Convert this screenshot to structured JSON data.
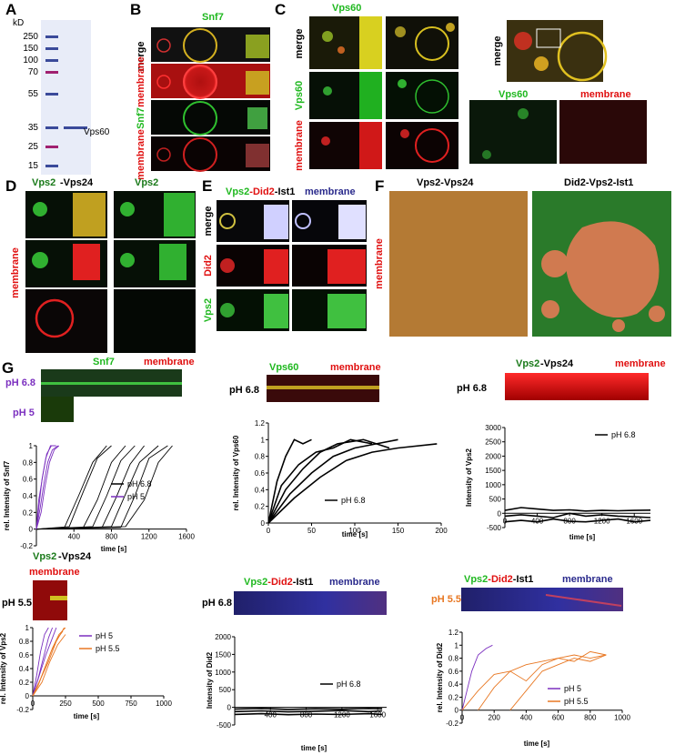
{
  "panels": {
    "A": "A",
    "B": "B",
    "C": "C",
    "D": "D",
    "E": "E",
    "F": "F",
    "G": "G"
  },
  "gel": {
    "unit": "kD",
    "ladder": [
      "250",
      "150",
      "100",
      "70",
      "55",
      "35",
      "25",
      "15"
    ],
    "protein_label": "Vps60"
  },
  "panel_b": {
    "title": "Snf7",
    "row_merge": "merge",
    "row_snf7": "Snf7",
    "row_membrane": "membrane"
  },
  "panel_c": {
    "title": "Vps60",
    "row_merge": "merge",
    "row_vps60": "Vps60",
    "row_membrane": "membrane",
    "zoom_merge": "merge",
    "zoom_vps60": "Vps60",
    "zoom_membrane": "membrane"
  },
  "panel_d": {
    "title_a": "Vps2",
    "title_b": "-Vps24",
    "title_c": "Vps2",
    "side": "membrane"
  },
  "panel_e": {
    "t1": "Vps2",
    "t2": "-Did2",
    "t3": "-Ist1",
    "t4": "membrane",
    "row_merge": "merge",
    "row_did2": "Did2",
    "row_vps2": "Vps2"
  },
  "panel_f": {
    "title_left": "Vps2-Vps24",
    "title_right": "Did2-Vps2-Ist1",
    "side": "membrane"
  },
  "colors": {
    "green": "#1fb81f",
    "red": "#e01010",
    "blue": "#2a2a8c",
    "purple": "#7b2fbf",
    "orange": "#e87722",
    "darkgreen": "#1a7a1a"
  },
  "charts": {
    "g1": {
      "label_snf7": "Snf7",
      "label_membrane": "membrane",
      "ph_a": "pH 6.8",
      "ph_b": "pH 5",
      "ylabel": "rel. Intensity of Snf7",
      "xlabel": "time [s]",
      "legend": [
        "pH 6.8",
        "pH 5"
      ],
      "yticks": [
        "1",
        "0.8",
        "0.6",
        "0.4",
        "0.2",
        "0",
        "-0.2"
      ],
      "xticks": [
        "400",
        "800",
        "1200",
        "1600"
      ]
    },
    "g2": {
      "label_vps60": "Vps60",
      "label_membrane": "membrane",
      "ph": "pH 6.8",
      "ylabel": "rel. Intensity  of  Vps60",
      "xlabel": "time [s]",
      "legend": [
        "pH 6.8"
      ],
      "yticks": [
        "1.2",
        "1",
        "0.8",
        "0.6",
        "0.4",
        "0.2",
        "0"
      ],
      "xticks": [
        "0",
        "50",
        "100",
        "150",
        "200"
      ]
    },
    "g3": {
      "label_vps2": "Vps2",
      "label_vps24": "-Vps24",
      "label_membrane": "membrane",
      "ph": "pH 6.8",
      "ylabel": "Intensity of Vps2",
      "xlabel": "time [s]",
      "legend": [
        "pH 6.8"
      ],
      "yticks": [
        "3000",
        "2500",
        "2000",
        "1500",
        "1000",
        "500",
        "0",
        "-500"
      ],
      "xticks": [
        "0",
        "400",
        "800",
        "1200",
        "1600"
      ]
    },
    "g4": {
      "label_vps2": "Vps2",
      "label_vps24": "-Vps24",
      "label_membrane": "membrane",
      "ph": "pH 5.5",
      "ylabel": "rel. Intensity of Vps2",
      "xlabel": "time [s]",
      "legend": [
        "pH 5",
        "pH 5.5"
      ],
      "yticks": [
        "1",
        "0.8",
        "0.6",
        "0.4",
        "0.2",
        "0",
        "-0.2"
      ],
      "xticks": [
        "0",
        "250",
        "500",
        "750",
        "1000"
      ]
    },
    "g5": {
      "t_vps2": "Vps2",
      "t_did2": "-Did2",
      "t_ist1": "-Ist1",
      "t_membrane": "membrane",
      "ph": "pH 6.8",
      "ylabel": "Intensity of Did2",
      "xlabel": "time [s]",
      "legend": [
        "pH 6.8"
      ],
      "yticks": [
        "2000",
        "1500",
        "1000",
        "500",
        "0",
        "-500"
      ],
      "xticks": [
        "400",
        "800",
        "1200",
        "1600"
      ]
    },
    "g6": {
      "t_vps2": "Vps2",
      "t_did2": "-Did2",
      "t_ist1": "-Ist1",
      "t_membrane": "membrane",
      "ph": "pH 5.5",
      "ylabel": "rel. Intensity of Did2",
      "xlabel": "time [s]",
      "legend": [
        "pH 5",
        "pH 5.5"
      ],
      "yticks": [
        "1.2",
        "1",
        "0.8",
        "0.6",
        "0.4",
        "0.2",
        "0",
        "-0.2"
      ],
      "xticks": [
        "0",
        "200",
        "400",
        "600",
        "800",
        "1000"
      ]
    }
  },
  "chart_data": [
    {
      "type": "line",
      "id": "g1",
      "xlim": [
        0,
        1600
      ],
      "ylim": [
        -0.2,
        1
      ],
      "series": [
        {
          "name": "pH 6.8",
          "color": "#000",
          "x": [
            [
              0,
              300,
              450,
              600,
              750
            ],
            [
              0,
              350,
              500,
              650,
              800
            ],
            [
              0,
              500,
              650,
              800,
              950
            ],
            [
              0,
              600,
              750,
              900,
              1050
            ],
            [
              0,
              700,
              850,
              1000,
              1150
            ],
            [
              0,
              800,
              950,
              1100,
              1300
            ],
            [
              0,
              900,
              1050,
              1200,
              1400
            ],
            [
              0,
              950,
              1150,
              1300,
              1450
            ]
          ],
          "y": [
            [
              0,
              0.02,
              0.4,
              0.8,
              1
            ],
            [
              0,
              0.03,
              0.45,
              0.85,
              1
            ],
            [
              0,
              0.02,
              0.35,
              0.8,
              1
            ],
            [
              0,
              0.03,
              0.4,
              0.82,
              1
            ],
            [
              0,
              0.02,
              0.38,
              0.78,
              1
            ],
            [
              0,
              0.03,
              0.42,
              0.8,
              1
            ],
            [
              0,
              0.02,
              0.4,
              0.85,
              1
            ],
            [
              0,
              0.03,
              0.35,
              0.8,
              1
            ]
          ]
        },
        {
          "name": "pH 5",
          "color": "#7b2fbf",
          "x": [
            [
              0,
              30,
              60,
              100,
              150,
              200
            ],
            [
              0,
              40,
              80,
              120,
              170,
              230
            ],
            [
              0,
              25,
              70,
              110,
              160,
              210
            ],
            [
              0,
              50,
              90,
              140,
              190,
              240
            ]
          ],
          "y": [
            [
              0,
              0.3,
              0.6,
              0.85,
              1,
              1
            ],
            [
              0,
              0.25,
              0.55,
              0.8,
              0.95,
              1
            ],
            [
              0,
              0.35,
              0.65,
              0.9,
              1,
              1
            ],
            [
              0,
              0.2,
              0.5,
              0.8,
              0.95,
              1
            ]
          ]
        }
      ]
    },
    {
      "type": "line",
      "id": "g2",
      "xlim": [
        0,
        200
      ],
      "ylim": [
        0,
        1.2
      ],
      "series": [
        {
          "name": "pH 6.8",
          "color": "#000",
          "x": [
            [
              0,
              10,
              20,
              30,
              40,
              50
            ],
            [
              0,
              20,
              40,
              60,
              80,
              110,
              140
            ],
            [
              0,
              25,
              50,
              75,
              100,
              125,
              150
            ],
            [
              0,
              30,
              60,
              90,
              120,
              150,
              195
            ],
            [
              0,
              15,
              35,
              55,
              75,
              95,
              120
            ]
          ],
          "y": [
            [
              0,
              0.5,
              0.8,
              1,
              0.95,
              1
            ],
            [
              0,
              0.4,
              0.65,
              0.85,
              0.95,
              1,
              0.9
            ],
            [
              0,
              0.35,
              0.6,
              0.8,
              0.9,
              0.95,
              1
            ],
            [
              0,
              0.3,
              0.55,
              0.75,
              0.85,
              0.9,
              0.95
            ],
            [
              0,
              0.45,
              0.7,
              0.85,
              0.9,
              1,
              0.95
            ]
          ]
        }
      ]
    },
    {
      "type": "line",
      "id": "g3",
      "xlim": [
        0,
        1800
      ],
      "ylim": [
        -500,
        3000
      ],
      "series": [
        {
          "name": "pH 6.8",
          "color": "#000",
          "x": [
            [
              0,
              200,
              400,
              600,
              800,
              1000,
              1200,
              1400,
              1600,
              1800
            ],
            [
              0,
              200,
              400,
              600,
              800,
              1000,
              1200,
              1400,
              1600,
              1800
            ],
            [
              0,
              200,
              400,
              600,
              800,
              1000,
              1200,
              1400,
              1600,
              1800
            ]
          ],
          "y": [
            [
              100,
              200,
              150,
              100,
              120,
              80,
              100,
              90,
              100,
              110
            ],
            [
              -100,
              -50,
              -100,
              -150,
              0,
              -100,
              -50,
              -100,
              -120,
              -150
            ],
            [
              -300,
              -250,
              -300,
              -200,
              -280,
              -300,
              -250,
              -200,
              -300,
              -250
            ]
          ]
        }
      ]
    },
    {
      "type": "line",
      "id": "g4",
      "xlim": [
        0,
        1000
      ],
      "ylim": [
        -0.2,
        1
      ],
      "series": [
        {
          "name": "pH 5",
          "color": "#7b2fbf",
          "x": [
            [
              0,
              30,
              60,
              90,
              120
            ],
            [
              0,
              40,
              80,
              120,
              150
            ],
            [
              0,
              50,
              100,
              150,
              180
            ]
          ],
          "y": [
            [
              0,
              0.3,
              0.65,
              0.9,
              1
            ],
            [
              0,
              0.25,
              0.55,
              0.85,
              1
            ],
            [
              0,
              0.3,
              0.6,
              0.85,
              1
            ]
          ]
        },
        {
          "name": "pH 5.5",
          "color": "#e87722",
          "x": [
            [
              0,
              50,
              100,
              150,
              200,
              250
            ],
            [
              0,
              60,
              120,
              180,
              240
            ],
            [
              0,
              40,
              90,
              140,
              190,
              230
            ],
            [
              0,
              70,
              130,
              190,
              250
            ]
          ],
          "y": [
            [
              0,
              0.2,
              0.45,
              0.7,
              0.9,
              1
            ],
            [
              0,
              0.25,
              0.5,
              0.8,
              1
            ],
            [
              0,
              0.15,
              0.4,
              0.65,
              0.85,
              0.95
            ],
            [
              0,
              0.2,
              0.5,
              0.75,
              0.9
            ]
          ]
        }
      ]
    },
    {
      "type": "line",
      "id": "g5",
      "xlim": [
        0,
        1700
      ],
      "ylim": [
        -500,
        2000
      ],
      "series": [
        {
          "name": "pH 6.8",
          "color": "#000",
          "x": [
            [
              0,
              300,
              600,
              900,
              1200,
              1500,
              1650
            ],
            [
              0,
              300,
              600,
              900,
              1200,
              1500,
              1650
            ],
            [
              0,
              300,
              600,
              900,
              1200,
              1500,
              1650
            ]
          ],
          "y": [
            [
              -50,
              -30,
              -60,
              -40,
              -50,
              -30,
              -40
            ],
            [
              -120,
              -100,
              -130,
              -110,
              -90,
              -120,
              -100
            ],
            [
              -200,
              -180,
              -210,
              -190,
              -200,
              -180,
              -200
            ]
          ]
        }
      ]
    },
    {
      "type": "line",
      "id": "g6",
      "xlim": [
        0,
        1000
      ],
      "ylim": [
        -0.2,
        1.2
      ],
      "series": [
        {
          "name": "pH 5",
          "color": "#7b2fbf",
          "x": [
            [
              0,
              30,
              60,
              100,
              150,
              190
            ]
          ],
          "y": [
            [
              0,
              0.3,
              0.6,
              0.85,
              0.95,
              1
            ]
          ]
        },
        {
          "name": "pH 5.5",
          "color": "#e87722",
          "x": [
            [
              0,
              100,
              200,
              300,
              400,
              500,
              600,
              700,
              800,
              900
            ],
            [
              100,
              200,
              300,
              400,
              500,
              600,
              700,
              800,
              900
            ],
            [
              300,
              400,
              500,
              600,
              700,
              800,
              900
            ]
          ],
          "y": [
            [
              0,
              0.3,
              0.55,
              0.6,
              0.7,
              0.75,
              0.8,
              0.85,
              0.8,
              0.85
            ],
            [
              0,
              0.35,
              0.6,
              0.45,
              0.7,
              0.8,
              0.75,
              0.9,
              0.85
            ],
            [
              0,
              0.3,
              0.6,
              0.7,
              0.8,
              0.75,
              0.85
            ]
          ]
        }
      ]
    }
  ]
}
